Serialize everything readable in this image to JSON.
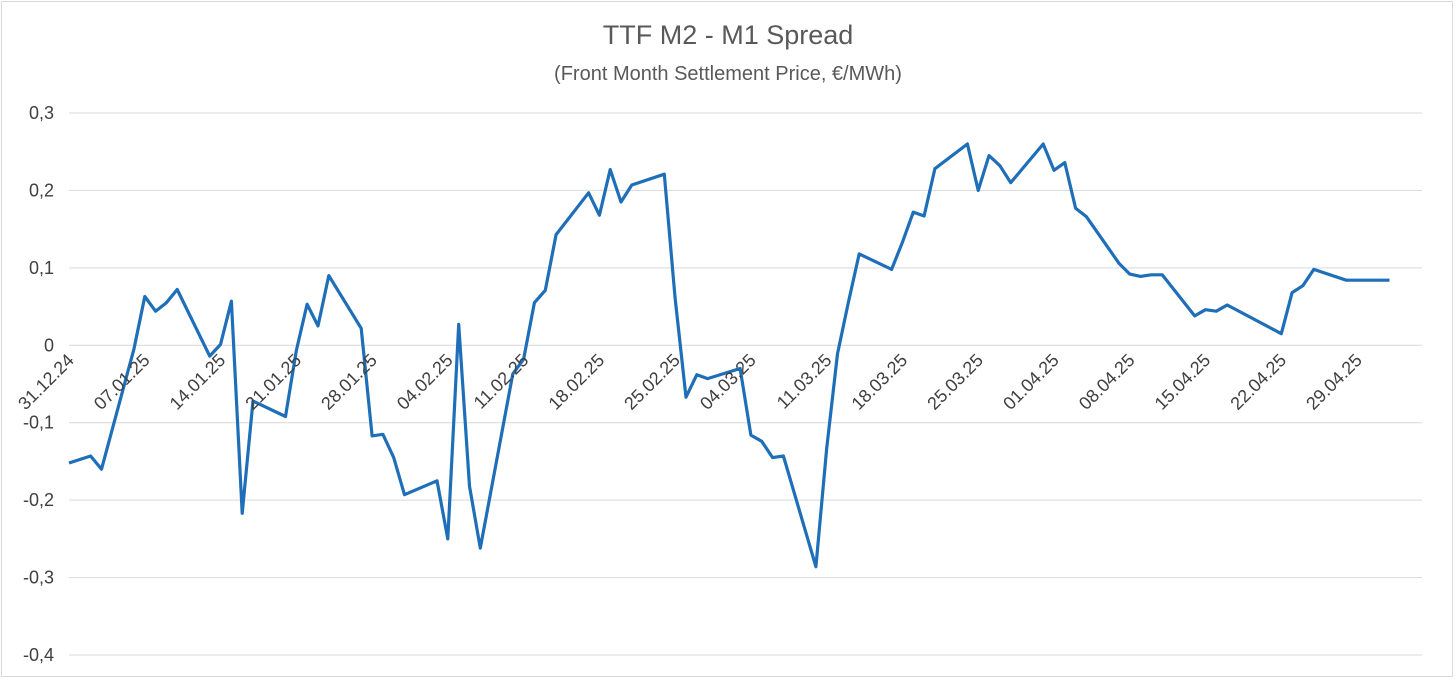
{
  "chart_data": {
    "type": "line",
    "title": "TTF M2 - M1 Spread",
    "subtitle": "(Front Month Settlement Price, €/MWh)",
    "xlabel": "",
    "ylabel": "",
    "ylim": [
      -0.4,
      0.3
    ],
    "yticks": [
      0.3,
      0.2,
      0.1,
      0,
      -0.1,
      -0.2,
      -0.3,
      -0.4
    ],
    "ytick_labels": [
      "0,3",
      "0,2",
      "0,1",
      "0",
      "-0,1",
      "-0,2",
      "-0,3",
      "-0,4"
    ],
    "grid": true,
    "legend": "none",
    "color": "#1f6fb8",
    "xlim": [
      "2024-12-31",
      "2025-05-05"
    ],
    "xtick_dates": [
      "2024-12-31",
      "2025-01-07",
      "2025-01-14",
      "2025-01-21",
      "2025-01-28",
      "2025-02-04",
      "2025-02-11",
      "2025-02-18",
      "2025-02-25",
      "2025-03-04",
      "2025-03-11",
      "2025-03-18",
      "2025-03-25",
      "2025-04-01",
      "2025-04-08",
      "2025-04-15",
      "2025-04-22",
      "2025-04-29"
    ],
    "xtick_labels": [
      "31.12.24",
      "07.01.25",
      "14.01.25",
      "21.01.25",
      "28.01.25",
      "04.02.25",
      "11.02.25",
      "18.02.25",
      "25.02.25",
      "04.03.25",
      "11.03.25",
      "18.03.25",
      "25.03.25",
      "01.04.25",
      "08.04.25",
      "15.04.25",
      "22.04.25",
      "29.04.25"
    ],
    "series": [
      {
        "x": [
          "2024-12-31",
          "2025-01-02",
          "2025-01-03",
          "2025-01-06",
          "2025-01-07",
          "2025-01-08",
          "2025-01-09",
          "2025-01-10",
          "2025-01-13",
          "2025-01-14",
          "2025-01-15",
          "2025-01-16",
          "2025-01-17",
          "2025-01-20",
          "2025-01-21",
          "2025-01-22",
          "2025-01-23",
          "2025-01-24",
          "2025-01-27",
          "2025-01-28",
          "2025-01-29",
          "2025-01-30",
          "2025-01-31",
          "2025-02-03",
          "2025-02-04",
          "2025-02-05",
          "2025-02-06",
          "2025-02-07",
          "2025-02-10",
          "2025-02-11",
          "2025-02-12",
          "2025-02-13",
          "2025-02-14",
          "2025-02-17",
          "2025-02-18",
          "2025-02-19",
          "2025-02-20",
          "2025-02-21",
          "2025-02-24",
          "2025-02-25",
          "2025-02-26",
          "2025-02-27",
          "2025-02-28",
          "2025-03-03",
          "2025-03-04",
          "2025-03-05",
          "2025-03-06",
          "2025-03-07",
          "2025-03-10",
          "2025-03-11",
          "2025-03-12",
          "2025-03-13",
          "2025-03-14",
          "2025-03-17",
          "2025-03-18",
          "2025-03-19",
          "2025-03-20",
          "2025-03-21",
          "2025-03-24",
          "2025-03-25",
          "2025-03-26",
          "2025-03-27",
          "2025-03-28",
          "2025-03-31",
          "2025-04-01",
          "2025-04-02",
          "2025-04-03",
          "2025-04-04",
          "2025-04-07",
          "2025-04-08",
          "2025-04-09",
          "2025-04-10",
          "2025-04-11",
          "2025-04-14",
          "2025-04-15",
          "2025-04-16",
          "2025-04-17",
          "2025-04-22",
          "2025-04-23",
          "2025-04-24",
          "2025-04-25",
          "2025-04-28",
          "2025-04-29",
          "2025-04-30",
          "2025-05-01",
          "2025-05-02"
        ],
        "values": [
          -0.152,
          -0.143,
          -0.16,
          -0.005,
          0.063,
          0.044,
          0.055,
          0.072,
          -0.014,
          0.001,
          0.057,
          -0.217,
          -0.072,
          -0.092,
          -0.007,
          0.053,
          0.025,
          0.09,
          0.022,
          -0.117,
          -0.115,
          -0.145,
          -0.193,
          -0.175,
          -0.25,
          0.027,
          -0.182,
          -0.262,
          -0.037,
          -0.018,
          0.055,
          0.071,
          0.143,
          0.197,
          0.168,
          0.227,
          0.185,
          0.207,
          0.221,
          0.061,
          -0.067,
          -0.038,
          -0.043,
          -0.03,
          -0.116,
          -0.124,
          -0.145,
          -0.143,
          -0.286,
          -0.133,
          -0.011,
          0.055,
          0.118,
          0.098,
          0.133,
          0.172,
          0.167,
          0.228,
          0.26,
          0.2,
          0.245,
          0.232,
          0.21,
          0.26,
          0.226,
          0.236,
          0.177,
          0.166,
          0.106,
          0.092,
          0.089,
          0.091,
          0.091,
          0.038,
          0.046,
          0.044,
          0.052,
          0.015,
          0.068,
          0.077,
          0.098,
          0.084,
          0.084,
          0.084,
          0.084,
          0.084
        ]
      }
    ]
  }
}
